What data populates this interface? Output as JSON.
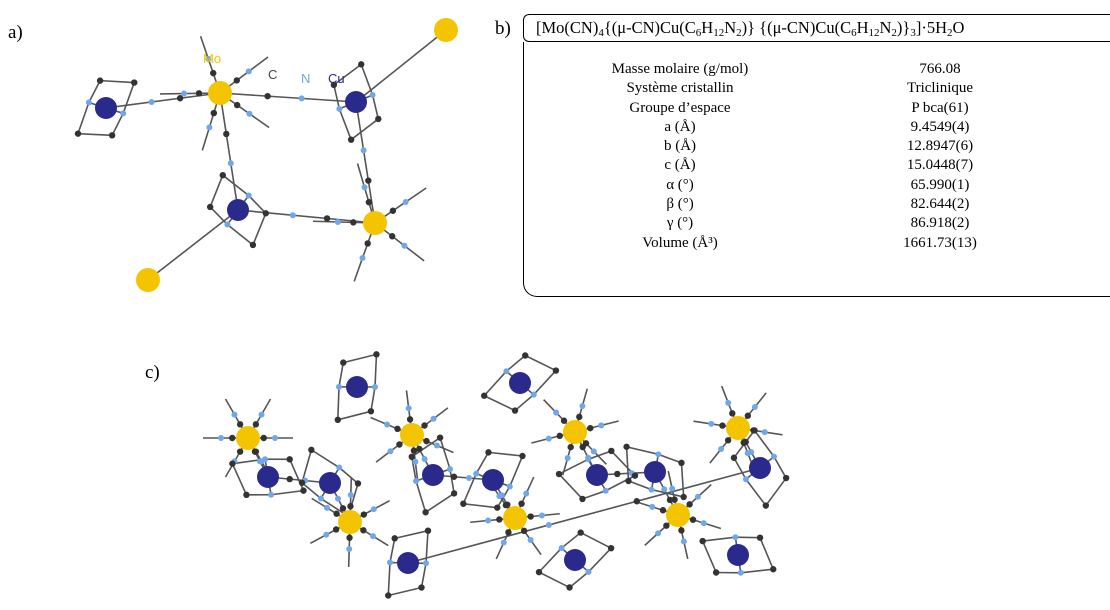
{
  "panels": {
    "a": "a)",
    "b": "b)",
    "c": "c)"
  },
  "structure_a": {
    "labels": [
      {
        "text": "Mo",
        "color": "#f5c400"
      },
      {
        "text": "C",
        "color": "#444444"
      },
      {
        "text": "N",
        "color": "#6fa8ea"
      },
      {
        "text": "Cu",
        "color": "#2a2a8c"
      }
    ]
  },
  "formula": {
    "p1": "[Mo(CN)",
    "s1": "4",
    "p2": "{(μ-CN)Cu(C",
    "s2": "6",
    "p3": "H",
    "s3": "12",
    "p4": "N",
    "s4": "2",
    "p5": ")} {(μ-CN)Cu(C",
    "s5": "6",
    "p6": "H",
    "s6": "12",
    "p7": "N",
    "s7": "2",
    "p8": ")}",
    "s8": "3",
    "p9": "]·5H",
    "s9": "2",
    "p10": "O"
  },
  "properties": [
    {
      "label": "Masse molaire (g/mol)",
      "value": "766.08"
    },
    {
      "label": "Système cristallin",
      "value": "Triclinique"
    },
    {
      "label": "Groupe d’espace",
      "value": "P bca(61)"
    },
    {
      "label": "a (Å)",
      "value": "9.4549(4)"
    },
    {
      "label": "b (Å)",
      "value": "12.8947(6)"
    },
    {
      "label": "c (Å)",
      "value": "15.0448(7)"
    },
    {
      "label": "α (°)",
      "value": "65.990(1)"
    },
    {
      "label": "β  (°)",
      "value": "82.644(2)"
    },
    {
      "label": "γ  (°)",
      "value": "86.918(2)"
    },
    {
      "label": "Volume (Å³)",
      "value": "1661.73(13)"
    }
  ],
  "colors": {
    "mo": "#f5c400",
    "cu": "#2a2a8c",
    "c": "#333333",
    "n": "#6fa8ea",
    "bond": "#555555"
  }
}
